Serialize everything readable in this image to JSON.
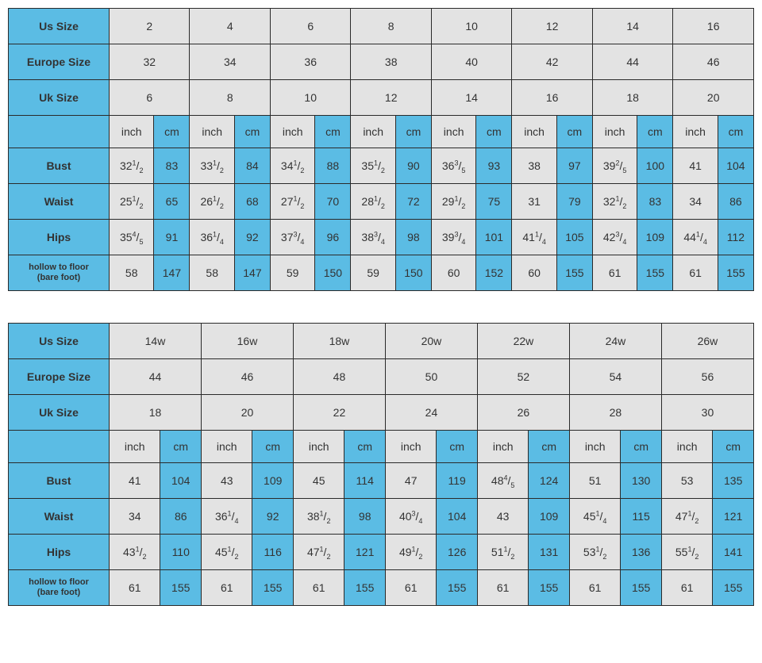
{
  "headers": {
    "us": "Us Size",
    "europe": "Europe Size",
    "uk": "Uk Size",
    "inch": "inch",
    "cm": "cm",
    "bust": "Bust",
    "waist": "Waist",
    "hips": "Hips",
    "h2f_1": "hollow to floor",
    "h2f_2": "(bare foot)"
  },
  "colors": {
    "blue": "#5bbce4",
    "grey": "#e3e3e3",
    "border": "#2a2a2a",
    "bg": "#ffffff"
  },
  "table1": {
    "sizes": 8,
    "us": [
      "2",
      "4",
      "6",
      "8",
      "10",
      "12",
      "14",
      "16"
    ],
    "europe": [
      "32",
      "34",
      "36",
      "38",
      "40",
      "42",
      "44",
      "46"
    ],
    "uk": [
      "6",
      "8",
      "10",
      "12",
      "14",
      "16",
      "18",
      "20"
    ],
    "bust": {
      "inch": [
        "32½",
        "33½",
        "34½",
        "35½",
        "36⅗",
        "38",
        "39⅖",
        "41"
      ],
      "cm": [
        "83",
        "84",
        "88",
        "90",
        "93",
        "97",
        "100",
        "104"
      ]
    },
    "waist": {
      "inch": [
        "25½",
        "26½",
        "27½",
        "28½",
        "29½",
        "31",
        "32½",
        "34"
      ],
      "cm": [
        "65",
        "68",
        "70",
        "72",
        "75",
        "79",
        "83",
        "86"
      ]
    },
    "hips": {
      "inch": [
        "35⅘",
        "36¼",
        "37¾",
        "38¾",
        "39¾",
        "41¼",
        "42¾",
        "44¼"
      ],
      "cm": [
        "91",
        "92",
        "96",
        "98",
        "101",
        "105",
        "109",
        "112"
      ]
    },
    "h2f": {
      "inch": [
        "58",
        "58",
        "59",
        "59",
        "60",
        "60",
        "61",
        "61"
      ],
      "cm": [
        "147",
        "147",
        "150",
        "150",
        "152",
        "155",
        "155",
        "155"
      ]
    }
  },
  "table2": {
    "sizes": 7,
    "us": [
      "14w",
      "16w",
      "18w",
      "20w",
      "22w",
      "24w",
      "26w"
    ],
    "europe": [
      "44",
      "46",
      "48",
      "50",
      "52",
      "54",
      "56"
    ],
    "uk": [
      "18",
      "20",
      "22",
      "24",
      "26",
      "28",
      "30"
    ],
    "bust": {
      "inch": [
        "41",
        "43",
        "45",
        "47",
        "48⅘",
        "51",
        "53"
      ],
      "cm": [
        "104",
        "109",
        "114",
        "119",
        "124",
        "130",
        "135"
      ]
    },
    "waist": {
      "inch": [
        "34",
        "36¼",
        "38½",
        "40¾",
        "43",
        "45¼",
        "47½"
      ],
      "cm": [
        "86",
        "92",
        "98",
        "104",
        "109",
        "115",
        "121"
      ]
    },
    "hips": {
      "inch": [
        "43½",
        "45½",
        "47½",
        "49½",
        "51½",
        "53½",
        "55½"
      ],
      "cm": [
        "110",
        "116",
        "121",
        "126",
        "131",
        "136",
        "141"
      ]
    },
    "h2f": {
      "inch": [
        "61",
        "61",
        "61",
        "61",
        "61",
        "61",
        "61"
      ],
      "cm": [
        "155",
        "155",
        "155",
        "155",
        "155",
        "155",
        "155"
      ]
    }
  }
}
